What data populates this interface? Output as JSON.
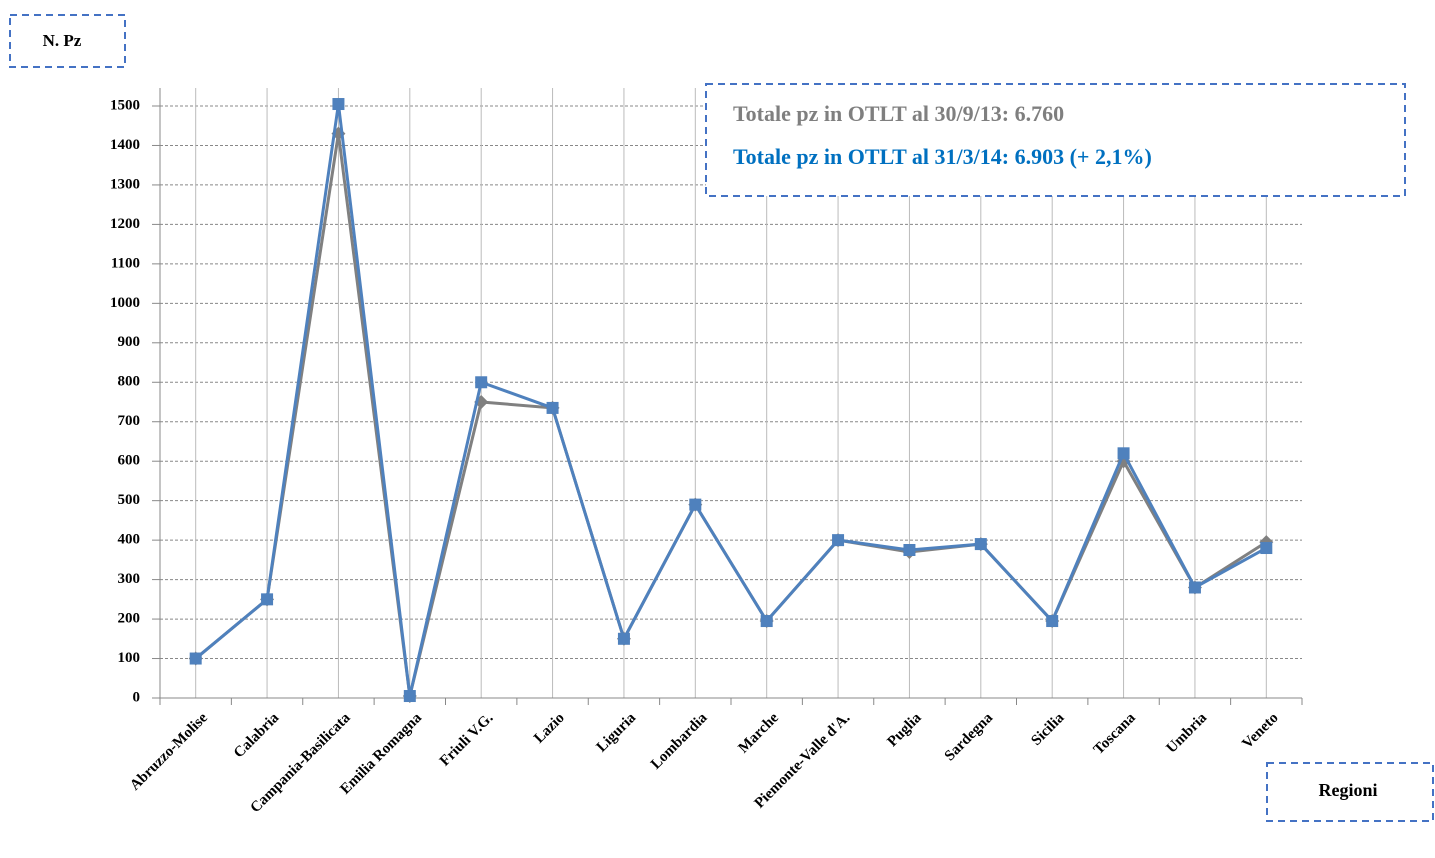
{
  "chart_data": {
    "type": "line",
    "y_label": "N. Pz",
    "x_label": "Regioni",
    "annotations": [
      "Totale pz in OTLT al 30/9/13: 6.760",
      "Totale pz in OTLT al 31/3/14: 6.903 (+ 2,1%)"
    ],
    "categories": [
      "Abruzzo-Molise",
      "Calabria",
      "Campania-Basilicata",
      "Emilia Romagna",
      "Friuli V.G.",
      "Lazio",
      "Liguria",
      "Lombardia",
      "Marche",
      "Piemonte-Valle d'A.",
      "Puglia",
      "Sardegna",
      "Sicilia",
      "Toscana",
      "Umbria",
      "Veneto"
    ],
    "series": [
      {
        "color": "#808080",
        "marker": "diamond",
        "values": [
          100,
          250,
          1430,
          5,
          750,
          735,
          150,
          490,
          195,
          400,
          370,
          390,
          195,
          600,
          280,
          395
        ]
      },
      {
        "color": "#4f81bd",
        "marker": "square",
        "values": [
          100,
          250,
          1505,
          5,
          800,
          735,
          150,
          490,
          195,
          400,
          375,
          390,
          195,
          620,
          280,
          380
        ]
      }
    ],
    "ylim": [
      0,
      1500
    ],
    "yticks": [
      0,
      100,
      200,
      300,
      400,
      500,
      600,
      700,
      800,
      900,
      1000,
      1100,
      1200,
      1300,
      1400,
      1500
    ],
    "grid": true
  }
}
